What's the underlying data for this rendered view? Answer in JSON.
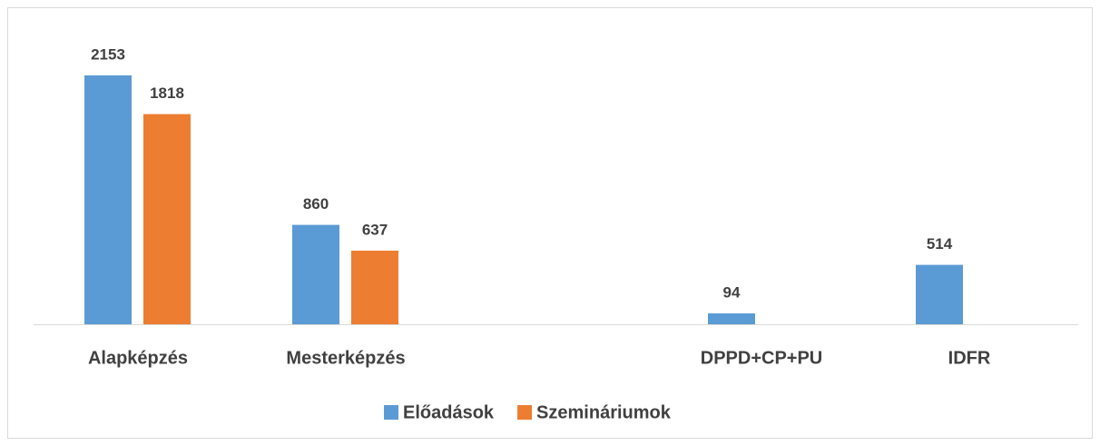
{
  "chart_data": {
    "type": "bar",
    "categories": [
      "Alapképzés",
      "Mesterképzés",
      null,
      "DPPD+CP+PU",
      "IDFR"
    ],
    "series": [
      {
        "name": "Előadások",
        "color": "#5b9bd5",
        "values": [
          2153,
          860,
          null,
          94,
          514
        ]
      },
      {
        "name": "Szemináriumok",
        "color": "#ed7d31",
        "values": [
          1818,
          637,
          null,
          null,
          null
        ]
      }
    ],
    "legend": "bottom"
  }
}
